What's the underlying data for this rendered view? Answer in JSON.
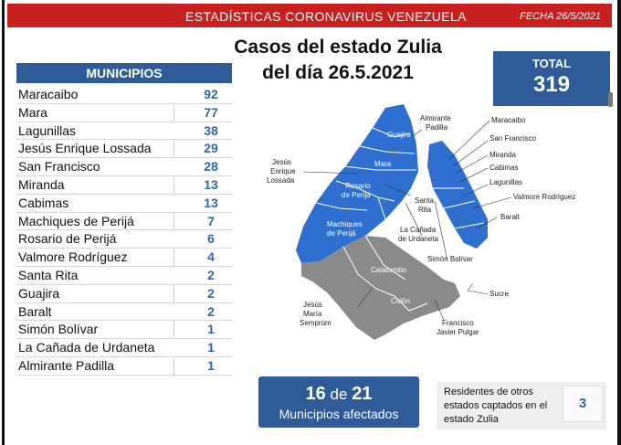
{
  "banner": {
    "title": "ESTADÍSTICAS CORONAVIRUS VENEZUELA",
    "date": "FECHA 26/5/2021"
  },
  "page_title": {
    "line1": "Casos del estado Zulia",
    "line2": "del día 26.5.2021"
  },
  "total": {
    "label": "TOTAL",
    "value": "319"
  },
  "municipios": {
    "header": "MUNICIPIOS",
    "rows": [
      {
        "name": "Maracaibo",
        "value": "92"
      },
      {
        "name": "Mara",
        "value": "77"
      },
      {
        "name": "Lagunillas",
        "value": "38"
      },
      {
        "name": "Jesús Enrique Lossada",
        "value": "29"
      },
      {
        "name": "San Francisco",
        "value": "28"
      },
      {
        "name": "Miranda",
        "value": "13"
      },
      {
        "name": "Cabimas",
        "value": "13"
      },
      {
        "name": "Machiques de Perijá",
        "value": "7"
      },
      {
        "name": "Rosario de Perijá",
        "value": "6"
      },
      {
        "name": "Valmore Rodríguez",
        "value": "4"
      },
      {
        "name": "Santa Rita",
        "value": "2"
      },
      {
        "name": "Guajira",
        "value": "2"
      },
      {
        "name": "Baralt",
        "value": "2"
      },
      {
        "name": "Simón Bolívar",
        "value": "1"
      },
      {
        "name": "La Cañada de Urdaneta",
        "value": "1"
      },
      {
        "name": "Almirante Padilla",
        "value": "1"
      }
    ]
  },
  "map": {
    "affected_color": "#2f6fcf",
    "unaffected_color": "#8a8a8a",
    "labels": {
      "guajira": "Guajira",
      "almirante_padilla_1": "Almirante",
      "almirante_padilla_2": "Padilla",
      "maracaibo": "Maracaibo",
      "san_francisco": "San Francisco",
      "miranda": "Miranda",
      "cabimas": "Cabimas",
      "lagunillas": "Lagunillas",
      "valmore": "Valmore Rodríguez",
      "baralt": "Baralt",
      "jesus_enrique_1": "Jesús",
      "jesus_enrique_2": "Enrique",
      "jesus_enrique_3": "Lossada",
      "mara": "Mara",
      "rosario_1": "Rosario",
      "rosario_2": "de Perijá",
      "santa_rita_1": "Santa",
      "santa_rita_2": "Rita",
      "machiques_1": "Machiques",
      "machiques_2": "de Perijá",
      "la_canada_1": "La Cañada",
      "la_canada_2": "de Urdaneta",
      "simon_bolivar": "Simón Bolívar",
      "catatumbo": "Catatumbo",
      "colon": "Colón",
      "sucre": "Sucre",
      "jesus_maria_1": "Jesús",
      "jesus_maria_2": "María",
      "jesus_maria_3": "Semprúm",
      "francisco_1": "Francisco",
      "francisco_2": "Javier Pulgar"
    }
  },
  "affected": {
    "count": "16",
    "of": "de",
    "total": "21",
    "label": "Municipios afectados"
  },
  "residents": {
    "text": "Residentes de otros estados captados en el estado Zulia",
    "value": "3"
  }
}
